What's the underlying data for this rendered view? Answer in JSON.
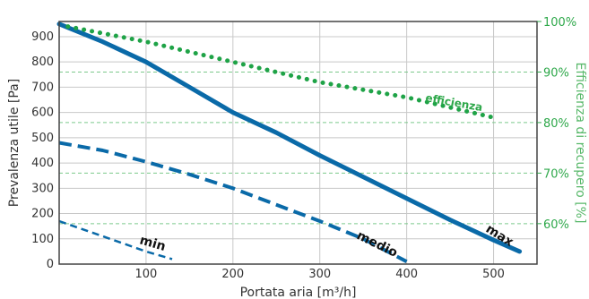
{
  "chart_data": {
    "type": "line",
    "xlabel": "Portata aria [m³/h]",
    "ylabel": "Prevalenza utile [Pa]",
    "y2label": "Efficienza di recupero [%]",
    "xlim": [
      0,
      550
    ],
    "ylim": [
      0,
      960
    ],
    "y2lim": [
      52,
      100
    ],
    "x_ticks": [
      100,
      200,
      300,
      400,
      500
    ],
    "y_ticks": [
      0,
      100,
      200,
      300,
      400,
      500,
      600,
      700,
      800,
      900
    ],
    "y2_ticks": [
      100,
      90,
      80,
      70,
      60
    ],
    "y2_tick_suffix": "%",
    "grid": true,
    "series": [
      {
        "name": "max",
        "axis": "left",
        "style": "solid",
        "color": "#0a6aa8",
        "points": [
          [
            0,
            950
          ],
          [
            50,
            880
          ],
          [
            100,
            800
          ],
          [
            150,
            700
          ],
          [
            200,
            600
          ],
          [
            250,
            520
          ],
          [
            300,
            430
          ],
          [
            350,
            345
          ],
          [
            400,
            260
          ],
          [
            450,
            175
          ],
          [
            500,
            95
          ],
          [
            530,
            50
          ]
        ]
      },
      {
        "name": "medio",
        "axis": "left",
        "style": "dashed",
        "color": "#0a6aa8",
        "points": [
          [
            0,
            480
          ],
          [
            50,
            450
          ],
          [
            100,
            405
          ],
          [
            150,
            355
          ],
          [
            200,
            300
          ],
          [
            250,
            235
          ],
          [
            300,
            170
          ],
          [
            350,
            100
          ],
          [
            400,
            10
          ]
        ]
      },
      {
        "name": "min",
        "axis": "left",
        "style": "dashed-thin",
        "color": "#0a6aa8",
        "points": [
          [
            0,
            170
          ],
          [
            50,
            110
          ],
          [
            100,
            50
          ],
          [
            130,
            20
          ]
        ]
      },
      {
        "name": "efficienza",
        "axis": "right",
        "style": "dotted",
        "color": "#1fa347",
        "points": [
          [
            10,
            99
          ],
          [
            100,
            96
          ],
          [
            200,
            92
          ],
          [
            300,
            88
          ],
          [
            400,
            85
          ],
          [
            500,
            81
          ]
        ]
      }
    ]
  }
}
